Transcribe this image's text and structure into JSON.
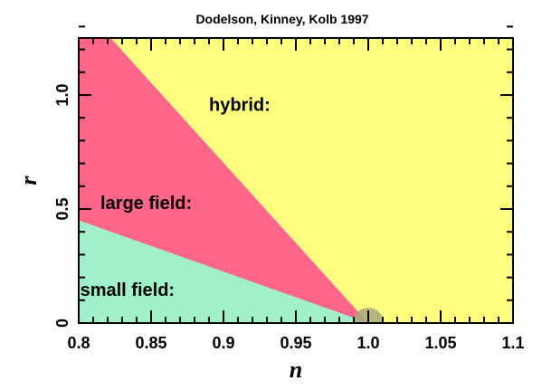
{
  "chart_data": {
    "type": "area",
    "title": "Dodelson, Kinney, Kolb 1997",
    "xlabel": "n",
    "ylabel": "r",
    "xlim": [
      0.8,
      1.1
    ],
    "ylim": [
      0,
      1.25
    ],
    "x_ticks": [
      {
        "value": 0.8,
        "label": "0.8"
      },
      {
        "value": 0.85,
        "label": "0.85"
      },
      {
        "value": 0.9,
        "label": "0.9"
      },
      {
        "value": 0.95,
        "label": "0.95"
      },
      {
        "value": 1.0,
        "label": "1.0"
      },
      {
        "value": 1.05,
        "label": "1.05"
      },
      {
        "value": 1.1,
        "label": "1.1"
      }
    ],
    "y_ticks": [
      {
        "value": 0,
        "label": "0"
      },
      {
        "value": 0.5,
        "label": "0.5"
      },
      {
        "value": 1.0,
        "label": "1.0"
      }
    ],
    "regions": [
      {
        "label": "hybrid:",
        "color": "#ffff80",
        "polygon": [
          [
            0.8,
            1.25
          ],
          [
            1.1,
            1.25
          ],
          [
            1.1,
            0
          ],
          [
            1.0,
            0
          ],
          [
            0.822,
            1.25
          ]
        ],
        "label_pos": [
          0.89,
          0.93
        ]
      },
      {
        "label": "large field:",
        "color": "#ff6688",
        "polygon": [
          [
            0.8,
            1.25
          ],
          [
            0.822,
            1.25
          ],
          [
            1.0,
            0
          ],
          [
            0.8,
            0.45
          ]
        ],
        "label_pos": [
          0.815,
          0.5
        ]
      },
      {
        "label": "small field:",
        "color": "#a0f0c8",
        "polygon": [
          [
            0.8,
            0.45
          ],
          [
            1.0,
            0
          ],
          [
            0.8,
            0
          ]
        ],
        "label_pos": [
          0.801,
          0.12
        ]
      }
    ],
    "marker": {
      "x": 1.0,
      "y": 0,
      "color": "#a8a880"
    },
    "grid": false
  }
}
